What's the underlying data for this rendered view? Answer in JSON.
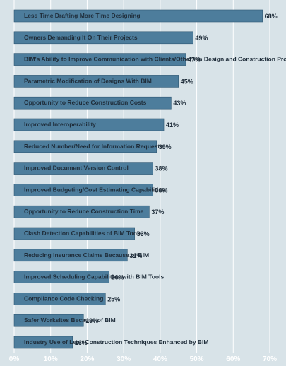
{
  "chart_data": {
    "type": "bar",
    "orientation": "horizontal",
    "categories": [
      "Less Time Drafting More Time Designing",
      "Owners Demanding It On Their Projects",
      "BIM's Ability to Improve Communication with Clients/Others in Design and Construction Process",
      "Parametric Modification of Designs With BIM",
      "Opportunity to Reduce Construction Costs",
      "Improved Interoperability",
      "Reduced Number/Need for Information Requests",
      "Improved Document Version Control",
      "Improved Budgeting/Cost Estimating Capabilities",
      "Opportunity to Reduce Construction Time",
      "Clash Detection Capabilities of BIM Tools",
      "Reducing Insurance Claims Because of BIM",
      "Improved Scheduling Capabilities with BIM Tools",
      "Compliance Code Checking",
      "Safer Worksites Because of BIM",
      "Industry Use of Lean Construction Techniques Enhanced by BIM"
    ],
    "values": [
      68,
      49,
      47,
      45,
      43,
      41,
      39,
      38,
      38,
      37,
      33,
      31,
      26,
      25,
      19,
      16
    ],
    "value_labels": [
      "68%",
      "49%",
      "47%",
      "45%",
      "43%",
      "41%",
      "39%",
      "38%",
      "38%",
      "37%",
      "33%",
      "31%",
      "26%",
      "25%",
      "19%",
      "16%"
    ],
    "xlim": [
      0,
      70
    ],
    "x_ticks": [
      "0%",
      "10%",
      "20%",
      "30%",
      "40%",
      "50%",
      "60%",
      "70%"
    ],
    "x_tick_values": [
      0,
      10,
      20,
      30,
      40,
      50,
      60,
      70
    ],
    "grid": true,
    "colors": {
      "background": "#d8e3e8",
      "bar": "#4d7d9c",
      "bar_edge": "#2f5873",
      "gridline": "#ffffff",
      "text": "#1f2d3a",
      "tick_text": "#ffffff"
    }
  }
}
